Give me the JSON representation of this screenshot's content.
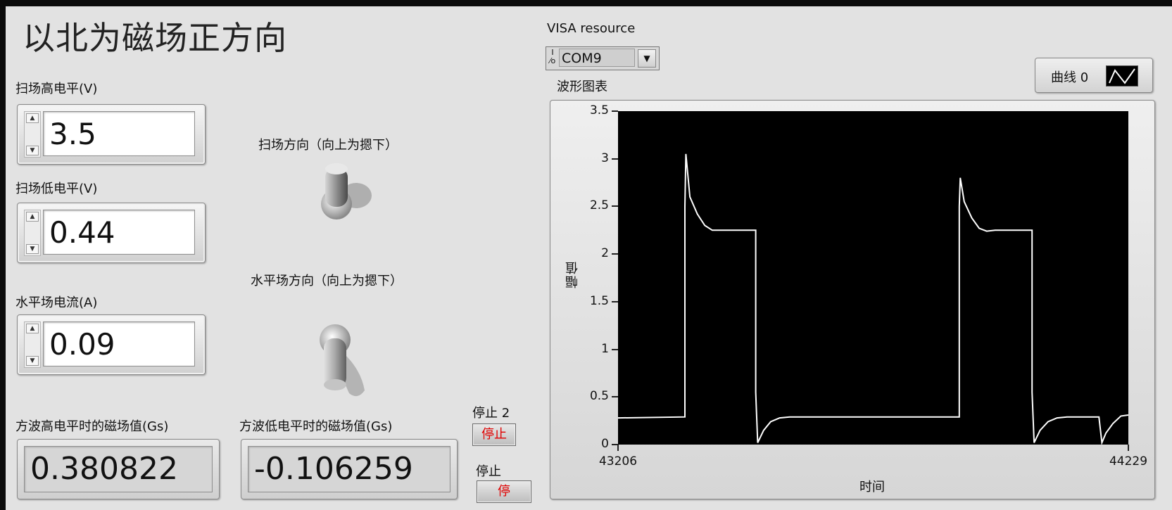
{
  "title": "以北为磁场正方向",
  "controls": {
    "scan_high": {
      "label": "扫场高电平(V)",
      "value": "3.5"
    },
    "scan_low": {
      "label": "扫场低电平(V)",
      "value": "0.44"
    },
    "horiz_current": {
      "label": "水平场电流(A)",
      "value": "0.09"
    }
  },
  "switches": {
    "scan_dir": {
      "label": "扫场方向（向上为摁下）",
      "state": "up"
    },
    "horiz_dir": {
      "label": "水平场方向（向上为摁下）",
      "state": "down"
    }
  },
  "indicators": {
    "high_field": {
      "label": "方波高电平时的磁场值(Gs)",
      "value": "0.380822"
    },
    "low_field": {
      "label": "方波低电平时的磁场值(Gs)",
      "value": "-0.106259"
    }
  },
  "buttons": {
    "stop2": {
      "label": "停止 2",
      "text": "停止"
    },
    "stop": {
      "label": "停止",
      "text": "停"
    }
  },
  "visa": {
    "label": "VISA resource",
    "io_icon": "I/O",
    "value": "COM9"
  },
  "chart_label": "波形图表",
  "legend": {
    "label": "曲线 0"
  },
  "chart_data": {
    "type": "line",
    "xlabel": "时间",
    "ylabel": "幅值",
    "xlim": [
      43206,
      44229
    ],
    "ylim": [
      0,
      3.5
    ],
    "x_ticks": [
      "43206",
      "44229"
    ],
    "y_ticks": [
      "0",
      "0.5",
      "1",
      "1.5",
      "2",
      "2.5",
      "3",
      "3.5"
    ],
    "series": [
      {
        "name": "曲线 0",
        "color": "#ffffff",
        "x": [
          43206,
          43340,
          43340,
          43342,
          43350,
          43365,
          43380,
          43395,
          43410,
          43482,
          43482,
          43486,
          43498,
          43512,
          43530,
          43550,
          43580,
          43626,
          43890,
          43890,
          43892,
          43900,
          43915,
          43930,
          43945,
          43962,
          44036,
          44036,
          44040,
          44052,
          44068,
          44086,
          44106,
          44130,
          44170,
          44176,
          44184,
          44198,
          44214,
          44229
        ],
        "y": [
          0.28,
          0.29,
          2.5,
          3.05,
          2.6,
          2.42,
          2.3,
          2.25,
          2.25,
          2.25,
          0.55,
          0.02,
          0.15,
          0.24,
          0.28,
          0.29,
          0.29,
          0.29,
          0.29,
          2.5,
          2.8,
          2.55,
          2.38,
          2.27,
          2.24,
          2.25,
          2.25,
          0.55,
          0.02,
          0.15,
          0.24,
          0.28,
          0.29,
          0.29,
          0.29,
          0.02,
          0.12,
          0.22,
          0.3,
          0.31
        ]
      }
    ]
  }
}
